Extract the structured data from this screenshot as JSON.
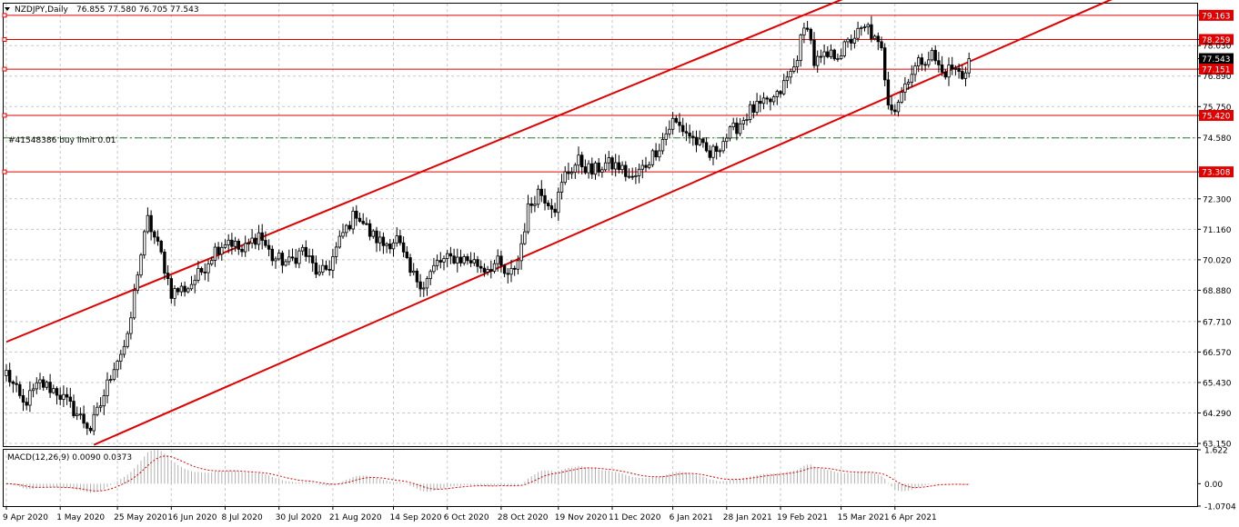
{
  "main_panel": {
    "title": "NZDJPY,Daily",
    "ohlc_text": "76.855 77.580 76.705 77.543",
    "order_label": "#41548386 buy limit 0.01"
  },
  "indicator_panel": {
    "title": "MACD(12,26,9) 0.0090 0.0373"
  },
  "colors": {
    "background": "#ffffff",
    "grid": "#c8c8c8",
    "candles": "#000000",
    "level_lines": "#e00000",
    "channel_lines": "#e00000",
    "order_line": "#2e7d32",
    "price_tag": "#000000",
    "macd_histogram": "#b0b0b0",
    "macd_signal": "#e00000"
  },
  "chart_data": [
    {
      "type": "candlestick",
      "symbol": "NZDJPY",
      "timeframe": "Daily",
      "y_ticks": [
        "79.163",
        "78.259",
        "78.030",
        "77.543",
        "77.151",
        "76.890",
        "75.750",
        "75.420",
        "74.580",
        "73.308",
        "72.300",
        "71.160",
        "70.020",
        "68.880",
        "67.710",
        "66.570",
        "65.430",
        "64.290",
        "63.150"
      ],
      "ylim": [
        63.05,
        79.6
      ],
      "x_labels": [
        "9 Apr 2020",
        "1 May 2020",
        "25 May 2020",
        "16 Jun 2020",
        "8 Jul 2020",
        "30 Jul 2020",
        "21 Aug 2020",
        "14 Sep 2020",
        "6 Oct 2020",
        "28 Oct 2020",
        "19 Nov 2020",
        "11 Dec 2020",
        "6 Jan 2021",
        "28 Jan 2021",
        "19 Feb 2021",
        "15 Mar 2021",
        "6 Apr 2021"
      ],
      "x_label_bar_index": [
        0,
        16,
        33,
        49,
        65,
        81,
        97,
        115,
        131,
        147,
        164,
        180,
        198,
        214,
        230,
        248,
        264
      ],
      "last_close": 77.543,
      "horizontal_levels": [
        {
          "price": 79.163,
          "label": "79.163"
        },
        {
          "price": 78.259,
          "label": "78.259"
        },
        {
          "price": 77.151,
          "label": "77.151"
        },
        {
          "price": 75.42,
          "label": "75.420"
        },
        {
          "price": 73.308,
          "label": "73.308"
        }
      ],
      "pending_order": {
        "price": 74.58,
        "label": "#41548386 buy limit 0.01"
      },
      "channel_lines": [
        {
          "bar_start": 0,
          "price_start": 66.95,
          "bar_end": 252,
          "price_end": 79.95
        },
        {
          "bar_start": 26,
          "price_start": 63.1,
          "bar_end": 330,
          "price_end": 79.85
        }
      ],
      "path_anchors": [
        {
          "bar": 0,
          "price": 65.8
        },
        {
          "bar": 5,
          "price": 64.6
        },
        {
          "bar": 10,
          "price": 65.4
        },
        {
          "bar": 15,
          "price": 65.1
        },
        {
          "bar": 20,
          "price": 64.4
        },
        {
          "bar": 25,
          "price": 63.7
        },
        {
          "bar": 28,
          "price": 64.6
        },
        {
          "bar": 32,
          "price": 66.1
        },
        {
          "bar": 36,
          "price": 67.0
        },
        {
          "bar": 39,
          "price": 69.6
        },
        {
          "bar": 42,
          "price": 71.5
        },
        {
          "bar": 46,
          "price": 70.2
        },
        {
          "bar": 49,
          "price": 68.8
        },
        {
          "bar": 54,
          "price": 69.0
        },
        {
          "bar": 58,
          "price": 69.6
        },
        {
          "bar": 62,
          "price": 70.4
        },
        {
          "bar": 66,
          "price": 70.8
        },
        {
          "bar": 70,
          "price": 70.3
        },
        {
          "bar": 75,
          "price": 71.0
        },
        {
          "bar": 79,
          "price": 70.1
        },
        {
          "bar": 84,
          "price": 69.9
        },
        {
          "bar": 88,
          "price": 70.4
        },
        {
          "bar": 93,
          "price": 69.4
        },
        {
          "bar": 96,
          "price": 69.8
        },
        {
          "bar": 100,
          "price": 71.0
        },
        {
          "bar": 104,
          "price": 71.8
        },
        {
          "bar": 108,
          "price": 71.0
        },
        {
          "bar": 112,
          "price": 70.6
        },
        {
          "bar": 116,
          "price": 70.8
        },
        {
          "bar": 120,
          "price": 69.5
        },
        {
          "bar": 124,
          "price": 69.1
        },
        {
          "bar": 128,
          "price": 69.9
        },
        {
          "bar": 133,
          "price": 70.1
        },
        {
          "bar": 138,
          "price": 70.0
        },
        {
          "bar": 142,
          "price": 69.7
        },
        {
          "bar": 146,
          "price": 69.9
        },
        {
          "bar": 149,
          "price": 69.3
        },
        {
          "bar": 152,
          "price": 70.0
        },
        {
          "bar": 155,
          "price": 71.9
        },
        {
          "bar": 158,
          "price": 72.6
        },
        {
          "bar": 163,
          "price": 72.0
        },
        {
          "bar": 166,
          "price": 73.2
        },
        {
          "bar": 170,
          "price": 73.7
        },
        {
          "bar": 174,
          "price": 73.3
        },
        {
          "bar": 178,
          "price": 73.6
        },
        {
          "bar": 182,
          "price": 73.5
        },
        {
          "bar": 186,
          "price": 73.0
        },
        {
          "bar": 190,
          "price": 73.6
        },
        {
          "bar": 194,
          "price": 74.3
        },
        {
          "bar": 198,
          "price": 75.2
        },
        {
          "bar": 202,
          "price": 74.8
        },
        {
          "bar": 206,
          "price": 74.3
        },
        {
          "bar": 209,
          "price": 73.9
        },
        {
          "bar": 213,
          "price": 74.5
        },
        {
          "bar": 217,
          "price": 75.0
        },
        {
          "bar": 221,
          "price": 75.6
        },
        {
          "bar": 225,
          "price": 75.8
        },
        {
          "bar": 229,
          "price": 76.1
        },
        {
          "bar": 232,
          "price": 76.8
        },
        {
          "bar": 234,
          "price": 77.2
        },
        {
          "bar": 236,
          "price": 78.2
        },
        {
          "bar": 238,
          "price": 78.9
        },
        {
          "bar": 240,
          "price": 77.4
        },
        {
          "bar": 244,
          "price": 77.6
        },
        {
          "bar": 248,
          "price": 77.8
        },
        {
          "bar": 252,
          "price": 78.4
        },
        {
          "bar": 256,
          "price": 78.7
        },
        {
          "bar": 258,
          "price": 78.2
        },
        {
          "bar": 260,
          "price": 77.8
        },
        {
          "bar": 262,
          "price": 76.0
        },
        {
          "bar": 264,
          "price": 75.7
        },
        {
          "bar": 266,
          "price": 76.3
        },
        {
          "bar": 268,
          "price": 76.9
        },
        {
          "bar": 272,
          "price": 77.5
        },
        {
          "bar": 275,
          "price": 77.7
        },
        {
          "bar": 278,
          "price": 77.0
        },
        {
          "bar": 281,
          "price": 77.2
        },
        {
          "bar": 284,
          "price": 76.9
        },
        {
          "bar": 286,
          "price": 77.54
        }
      ]
    },
    {
      "type": "histogram+line",
      "indicator": "MACD(12,26,9)",
      "macd": 0.009,
      "signal": 0.0373,
      "y_ticks": [
        "1.622",
        "0.00",
        "-1.0704"
      ],
      "ylim": [
        -1.0704,
        1.622
      ]
    }
  ]
}
